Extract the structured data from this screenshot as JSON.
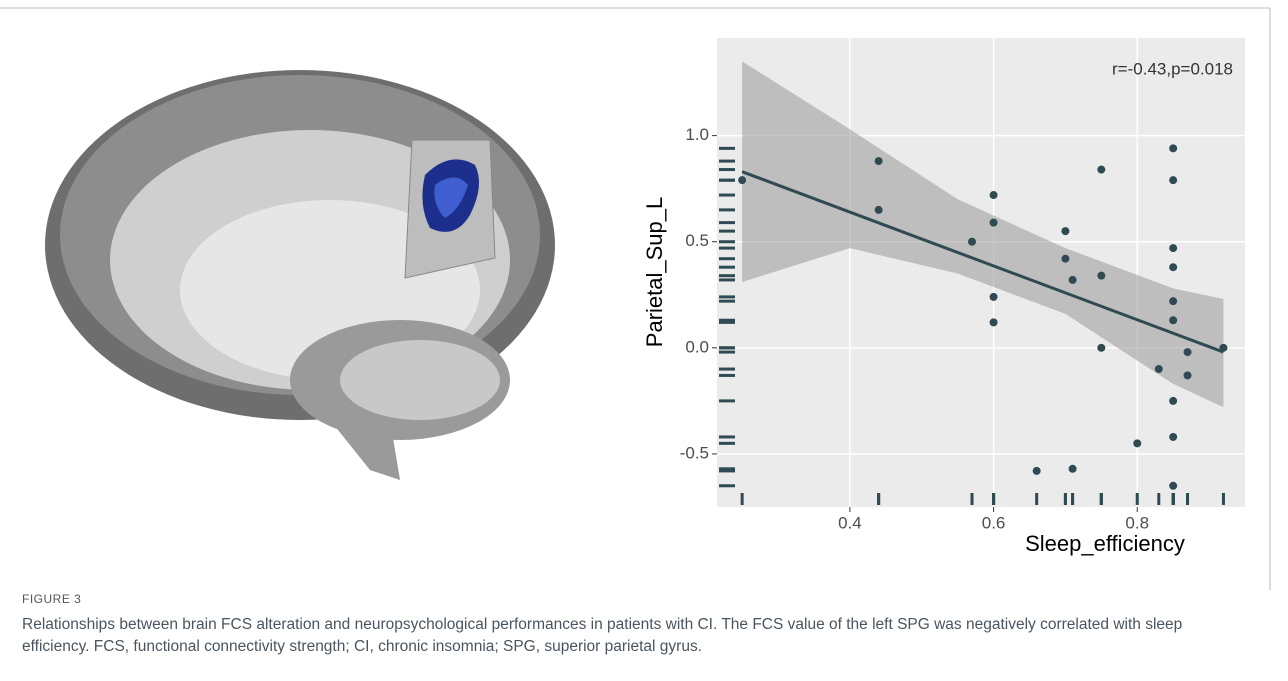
{
  "chart_data": {
    "type": "scatter",
    "xlabel": "Sleep_efficiency",
    "ylabel": "Parietal_Sup_L",
    "annotation": "r=-0.43,p=0.018",
    "x": [
      0.25,
      0.44,
      0.44,
      0.57,
      0.6,
      0.6,
      0.6,
      0.6,
      0.66,
      0.7,
      0.7,
      0.71,
      0.71,
      0.75,
      0.75,
      0.75,
      0.8,
      0.83,
      0.85,
      0.85,
      0.85,
      0.85,
      0.85,
      0.85,
      0.85,
      0.85,
      0.85,
      0.87,
      0.87,
      0.92
    ],
    "y": [
      0.79,
      0.88,
      0.65,
      0.5,
      0.72,
      0.59,
      0.24,
      0.12,
      -0.58,
      0.55,
      0.42,
      0.32,
      -0.57,
      0.84,
      0.34,
      0.0,
      -0.45,
      -0.1,
      0.94,
      0.79,
      0.47,
      0.38,
      0.22,
      0.13,
      -0.25,
      -0.42,
      -0.65,
      -0.02,
      -0.13,
      0.0
    ],
    "color": "#2f4a52",
    "fit": {
      "x": [
        0.25,
        0.92
      ],
      "y": [
        0.83,
        -0.02
      ]
    },
    "band": {
      "x": [
        0.25,
        0.4,
        0.55,
        0.7,
        0.85,
        0.92
      ],
      "upper": [
        1.35,
        1.03,
        0.7,
        0.47,
        0.28,
        0.23
      ],
      "lower": [
        0.31,
        0.47,
        0.35,
        0.16,
        -0.17,
        -0.28
      ]
    },
    "xlim": [
      0.215,
      0.95
    ],
    "ylim": [
      -0.75,
      1.46
    ],
    "xticks": [
      0.4,
      0.6,
      0.8
    ],
    "yticks": [
      {
        "value": -0.5,
        "label": "-0.5"
      },
      {
        "value": 0,
        "label": "0.0"
      },
      0.5,
      {
        "value": 1,
        "label": "1.0"
      }
    ],
    "grid": true
  },
  "figure": {
    "label": "FIGURE 3",
    "caption": "Relationships between brain FCS alteration and neuropsychological performances in patients with CI. The FCS value of the left SPG was negatively correlated with sleep efficiency. FCS, functional connectivity strength; CI, chronic insomnia; SPG, superior parietal gyrus."
  }
}
